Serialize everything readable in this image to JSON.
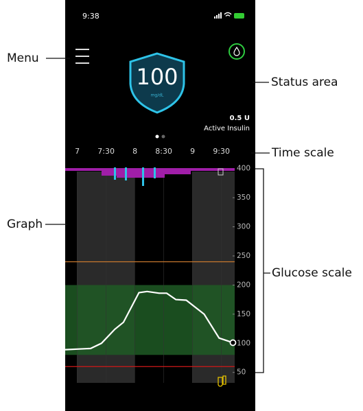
{
  "status_bar": {
    "time": "9:38"
  },
  "callouts": {
    "menu": "Menu",
    "status_area": "Status area",
    "time_scale": "Time scale",
    "graph": "Graph",
    "glucose_scale": "Glucose scale"
  },
  "status": {
    "glucose": "100",
    "unit": "mg/dL",
    "insulin": "0.5 U",
    "insulin_label": "Active Insulin"
  },
  "chart_data": {
    "type": "line",
    "x": [
      6.79,
      7.23,
      7.42,
      7.65,
      7.8,
      8.07,
      8.21,
      8.42,
      8.55,
      8.71,
      8.89,
      9.2,
      9.46,
      9.7
    ],
    "series": [
      {
        "color": "#ffffff",
        "values": [
          89,
          91,
          100,
          124,
          136,
          187,
          189,
          186,
          186,
          175,
          174,
          150,
          109,
          101
        ]
      }
    ],
    "xlim": [
      6.79,
      9.73
    ],
    "xticks": [
      7,
      {
        "value": 7.5,
        "label": "7:30"
      },
      8,
      {
        "value": 8.5,
        "label": "8:30"
      },
      9,
      {
        "value": 9.5,
        "label": "9:30"
      }
    ],
    "ylim": [
      32,
      402
    ],
    "yticks": [
      50,
      100,
      150,
      200,
      250,
      300,
      350,
      400
    ],
    "target_range": [
      80,
      200
    ],
    "high_alert": 240,
    "low_alert": 60
  }
}
